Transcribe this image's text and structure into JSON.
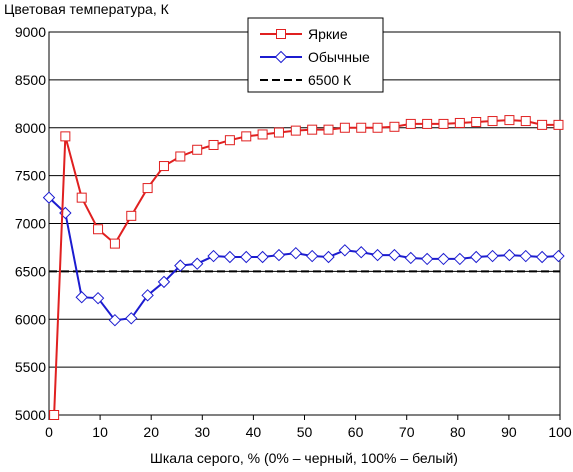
{
  "chart_data": {
    "type": "line",
    "title": "",
    "ylabel": "Цветовая температура, К",
    "xlabel": "Шкала серого, % (0% – черный, 100% – белый)",
    "xlim": [
      0,
      100
    ],
    "ylim": [
      5000,
      9000
    ],
    "xticks": [
      0,
      10,
      20,
      30,
      40,
      50,
      60,
      70,
      80,
      90,
      100
    ],
    "yticks": [
      5000,
      5500,
      6000,
      6500,
      7000,
      7500,
      8000,
      8500,
      9000
    ],
    "grid": "horizontal",
    "legend_position": "top-center",
    "series": [
      {
        "name": "Яркие",
        "color": "#e02020",
        "marker": "square",
        "x": [
          1,
          3.2,
          6.4,
          9.6,
          12.9,
          16.1,
          19.3,
          22.5,
          25.7,
          29,
          32.2,
          35.4,
          38.6,
          41.8,
          45,
          48.3,
          51.5,
          54.7,
          57.9,
          61.1,
          64.3,
          67.6,
          70.8,
          74,
          77.2,
          80.4,
          83.6,
          86.8,
          90.1,
          93.3,
          96.5,
          99.7
        ],
        "y": [
          5000,
          7910,
          7270,
          6940,
          6790,
          7080,
          7370,
          7600,
          7700,
          7770,
          7820,
          7870,
          7910,
          7930,
          7950,
          7970,
          7980,
          7980,
          8000,
          8000,
          8000,
          8010,
          8040,
          8040,
          8040,
          8050,
          8060,
          8070,
          8080,
          8070,
          8030,
          8030
        ]
      },
      {
        "name": "Обычные",
        "color": "#1c1cd0",
        "marker": "diamond",
        "x": [
          0,
          3.2,
          6.4,
          9.6,
          12.9,
          16.1,
          19.3,
          22.5,
          25.7,
          29,
          32.2,
          35.4,
          38.6,
          41.8,
          45,
          48.3,
          51.5,
          54.7,
          57.9,
          61.1,
          64.3,
          67.6,
          70.8,
          74,
          77.2,
          80.4,
          83.6,
          86.8,
          90.1,
          93.3,
          96.5,
          99.7
        ],
        "y": [
          7270,
          7110,
          6230,
          6220,
          5990,
          6010,
          6250,
          6390,
          6560,
          6580,
          6660,
          6650,
          6650,
          6650,
          6670,
          6690,
          6660,
          6650,
          6720,
          6700,
          6670,
          6670,
          6640,
          6630,
          6630,
          6630,
          6650,
          6660,
          6670,
          6660,
          6650,
          6660
        ]
      },
      {
        "name": "6500 К",
        "color": "#000000",
        "style": "dashed",
        "x": [
          0,
          100
        ],
        "y": [
          6500,
          6500
        ]
      }
    ]
  }
}
